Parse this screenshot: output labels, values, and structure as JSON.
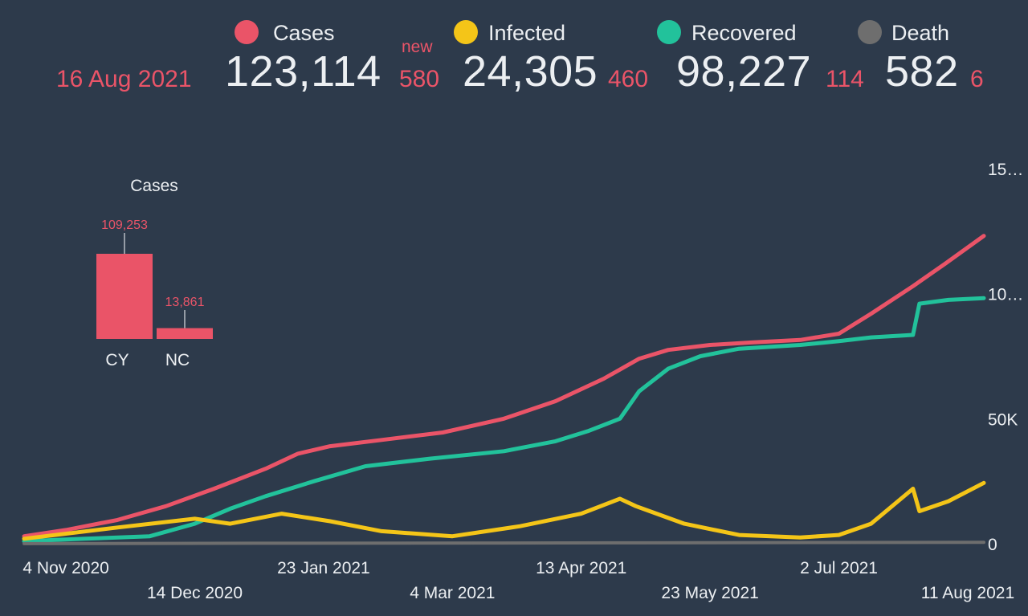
{
  "header": {
    "date": "16 Aug 2021",
    "new_label": "new",
    "stats": [
      {
        "label": "Cases",
        "value": "123,114",
        "delta": "580",
        "color": "#ea5468"
      },
      {
        "label": "Infected",
        "value": "24,305",
        "delta": "460",
        "color": "#f4c518"
      },
      {
        "label": "Recovered",
        "value": "98,227",
        "delta": "114",
        "color": "#22c29b"
      },
      {
        "label": "Death",
        "value": "582",
        "delta": "6",
        "color": "#6e6e6e"
      }
    ]
  },
  "chart_data": [
    {
      "type": "bar",
      "title": "Cases",
      "categories": [
        "CY",
        "NC"
      ],
      "values": [
        109253,
        13861
      ],
      "data_labels": [
        "109,253",
        "13,861"
      ],
      "color": "#ea5468"
    },
    {
      "type": "line",
      "x_tick_labels": [
        "4 Nov 2020",
        "14 Dec 2020",
        "23 Jan 2021",
        "4 Mar 2021",
        "13 Apr 2021",
        "23 May 2021",
        "2 Jul 2021",
        "11 Aug 2021"
      ],
      "y_tick_labels": [
        "0",
        "50K",
        "10…",
        "15…"
      ],
      "ylim": [
        0,
        150000
      ],
      "x_start": "2020-10-22",
      "x_end": "2021-08-16",
      "series": [
        {
          "name": "Cases",
          "color": "#ea5468",
          "points": [
            [
              "2020-10-22",
              3000
            ],
            [
              "2020-11-04",
              5500
            ],
            [
              "2020-11-20",
              9500
            ],
            [
              "2020-12-05",
              15000
            ],
            [
              "2020-12-20",
              22000
            ],
            [
              "2021-01-05",
              30000
            ],
            [
              "2021-01-15",
              36000
            ],
            [
              "2021-01-25",
              39000
            ],
            [
              "2021-02-10",
              41500
            ],
            [
              "2021-03-01",
              44500
            ],
            [
              "2021-03-20",
              50000
            ],
            [
              "2021-04-05",
              57000
            ],
            [
              "2021-04-20",
              66000
            ],
            [
              "2021-05-01",
              74000
            ],
            [
              "2021-05-10",
              77500
            ],
            [
              "2021-05-23",
              79500
            ],
            [
              "2021-06-05",
              80500
            ],
            [
              "2021-06-20",
              81500
            ],
            [
              "2021-07-02",
              84000
            ],
            [
              "2021-07-12",
              92000
            ],
            [
              "2021-07-25",
              103000
            ],
            [
              "2021-08-04",
              112000
            ],
            [
              "2021-08-16",
              123114
            ]
          ]
        },
        {
          "name": "Recovered",
          "color": "#22c29b",
          "points": [
            [
              "2020-10-22",
              1000
            ],
            [
              "2020-11-10",
              2000
            ],
            [
              "2020-11-30",
              3000
            ],
            [
              "2020-12-14",
              8000
            ],
            [
              "2020-12-25",
              14000
            ],
            [
              "2021-01-05",
              19000
            ],
            [
              "2021-01-20",
              25000
            ],
            [
              "2021-02-05",
              31000
            ],
            [
              "2021-02-25",
              34000
            ],
            [
              "2021-03-20",
              37000
            ],
            [
              "2021-04-05",
              41000
            ],
            [
              "2021-04-15",
              45000
            ],
            [
              "2021-04-25",
              50000
            ],
            [
              "2021-05-01",
              61000
            ],
            [
              "2021-05-10",
              70000
            ],
            [
              "2021-05-20",
              75000
            ],
            [
              "2021-06-01",
              78000
            ],
            [
              "2021-06-20",
              79500
            ],
            [
              "2021-07-02",
              81000
            ],
            [
              "2021-07-12",
              82500
            ],
            [
              "2021-07-25",
              83500
            ],
            [
              "2021-07-27",
              96000
            ],
            [
              "2021-08-05",
              97500
            ],
            [
              "2021-08-16",
              98227
            ]
          ]
        },
        {
          "name": "Infected",
          "color": "#f4c518",
          "points": [
            [
              "2020-10-22",
              2000
            ],
            [
              "2020-11-20",
              6500
            ],
            [
              "2020-12-14",
              10000
            ],
            [
              "2020-12-25",
              8000
            ],
            [
              "2021-01-10",
              12000
            ],
            [
              "2021-01-25",
              9000
            ],
            [
              "2021-02-10",
              5000
            ],
            [
              "2021-03-04",
              3000
            ],
            [
              "2021-03-25",
              7000
            ],
            [
              "2021-04-13",
              12000
            ],
            [
              "2021-04-25",
              18000
            ],
            [
              "2021-04-30",
              15000
            ],
            [
              "2021-05-15",
              8000
            ],
            [
              "2021-06-01",
              3500
            ],
            [
              "2021-06-20",
              2500
            ],
            [
              "2021-07-02",
              3500
            ],
            [
              "2021-07-12",
              8000
            ],
            [
              "2021-07-25",
              22000
            ],
            [
              "2021-07-27",
              13000
            ],
            [
              "2021-08-05",
              17000
            ],
            [
              "2021-08-16",
              24305
            ]
          ]
        },
        {
          "name": "Death",
          "color": "#6e6e6e",
          "points": [
            [
              "2020-10-22",
              20
            ],
            [
              "2021-01-01",
              200
            ],
            [
              "2021-05-01",
              350
            ],
            [
              "2021-08-16",
              582
            ]
          ]
        }
      ]
    }
  ]
}
